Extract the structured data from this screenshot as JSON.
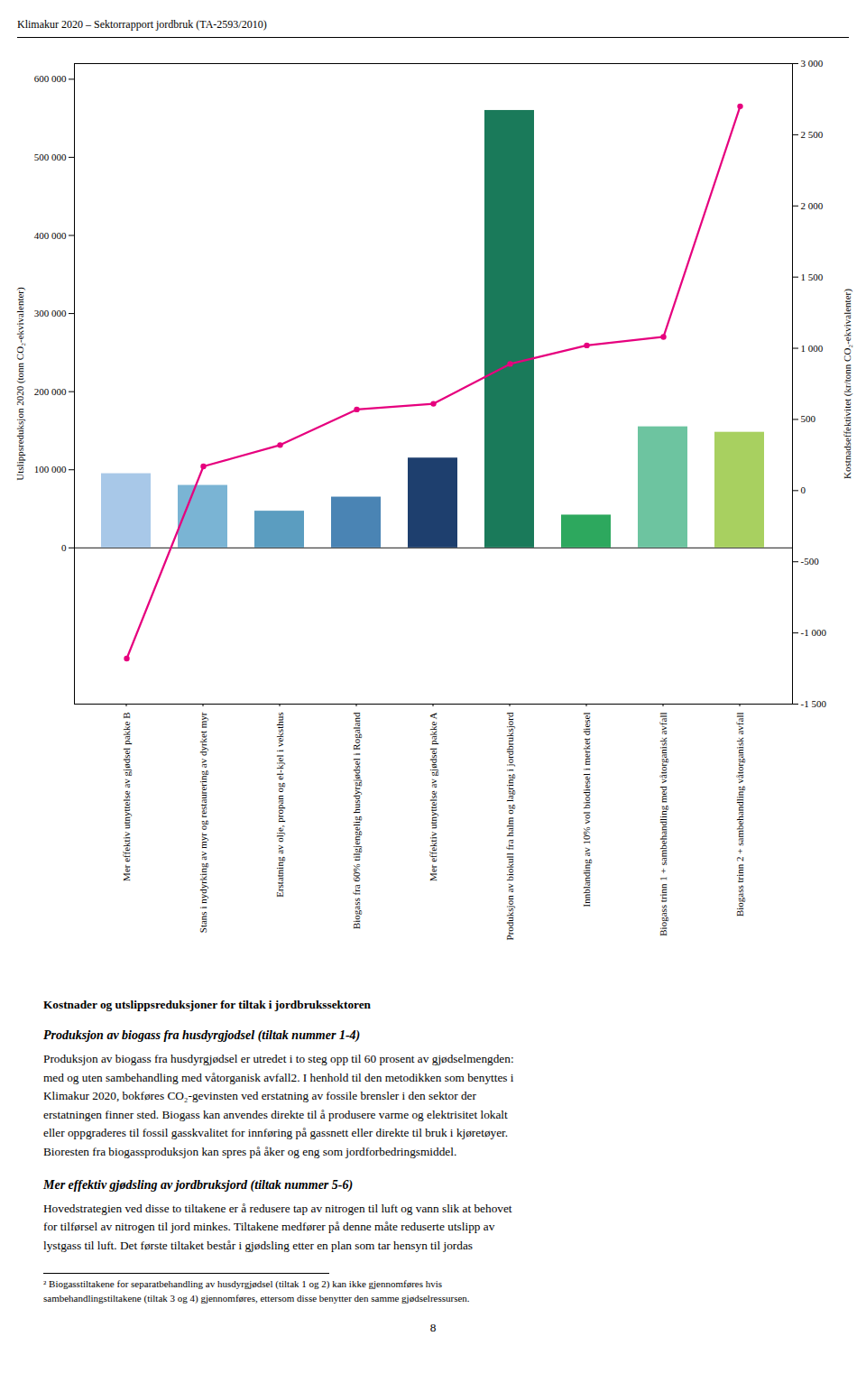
{
  "chart_data": {
    "type": "bar",
    "title": "Kostnader og utslippsreduksjoner for tiltak i jordbrukssektoren",
    "categories": [
      "Mer effektiv utnyttelse av gjødsel pakke B",
      "Stans i nydyrking av myr og restaurering av dyrket myr",
      "Erstatning av olje, propan og el-kjel i veksthus",
      "Biogass fra 60% tilgjengelig husdyrgjødsel i Rogaland",
      "Mer effektiv utnyttelse av gjødsel pakke A",
      "Produksjon av biokull fra halm og lagring i jordbruksjord",
      "Innblanding av 10% vol biodiesel i merket diesel",
      "Biogass trinn 1 + sambehandling med våtorganisk avfall",
      "Biogass trinn 2 + sambehandling våtorganisk avfall"
    ],
    "values": [
      95000,
      80000,
      47000,
      65000,
      115000,
      560000,
      42000,
      155000,
      148000
    ],
    "colors": [
      "#a8c8e8",
      "#7ab4d4",
      "#5b9dc0",
      "#4a84b4",
      "#1e3f6e",
      "#1a7a5a",
      "#2da85e",
      "#6dc4a0",
      "#a8d060"
    ],
    "series": [
      {
        "type": "line",
        "axis": "y2",
        "color": "#e6007e",
        "marker": "circle",
        "values": [
          -1180,
          170,
          320,
          570,
          610,
          890,
          1020,
          1080,
          2700
        ]
      }
    ],
    "ylabel": "Utslippsreduksjon 2020 (tonn CO₂-ekvivalenter)",
    "y2label": "Kostnadseffektivitet (kr/tonn CO₂-ekvivalenter)",
    "ylim": [
      -200000,
      620000
    ],
    "yticks": [
      0,
      {
        "value": 100000,
        "label": "100 000"
      },
      {
        "value": 200000,
        "label": "200 000"
      },
      {
        "value": 300000,
        "label": "300 000"
      },
      {
        "value": 400000,
        "label": "400 000"
      },
      {
        "value": 500000,
        "label": "500 000"
      },
      {
        "value": 600000,
        "label": "600 000"
      }
    ],
    "y2lim": [
      -1500,
      3000
    ],
    "y2ticks": [
      {
        "value": -1500,
        "label": "-1 500"
      },
      {
        "value": -1000,
        "label": "-1 000"
      },
      -500,
      0,
      500,
      {
        "value": 1000,
        "label": "1 000"
      },
      {
        "value": 1500,
        "label": "1 500"
      },
      {
        "value": 2000,
        "label": "2 000"
      },
      {
        "value": 2500,
        "label": "2 500"
      },
      {
        "value": 3000,
        "label": "3 000"
      }
    ],
    "grid": false,
    "annotations": [
      "Klimakur 2020 – Sektorrapport jordbruk (TA-2593/2010)",
      "Produksjon av biogass fra husdyrgjodsel (tiltak nummer 1-4)",
      "Produksjon av biogass fra husdyrgjødsel er utredet i to steg opp til 60 prosent av gjødselmengden:\nmed og uten sambehandling med våtorganisk avfall2. I henhold til den metodikken som benyttes i\nKlimakur 2020, bokføres CO₂-gevinsten ved erstatning av fossile brensler i den sektor der\nerstatningen finner sted. Biogass kan anvendes direkte til å produsere varme og elektrisitet lokalt\neller oppgraderes til fossil gasskvalitet for innføring på gassnett eller direkte til bruk i kjøretøyer.\nBioresten fra biogassproduksjon kan spres på åker og eng som jordforbedringsmiddel.",
      "Mer effektiv gjødsling av jordbruksjord (tiltak nummer 5-6)",
      "Hovedstrategien ved disse to tiltakene er å redusere tap av nitrogen til luft og vann slik at behovet\nfor tilførsel av nitrogen til jord minkes. Tiltakene medfører på denne måte reduserte utslipp av\nlystgass til luft. Det første tiltaket består i gjødsling etter en plan som tar hensyn til jordas",
      "² Biogasstiltakene for separatbehandling av husdyrgjødsel (tiltak 1 og 2) kan ikke gjennomføres hvis\nsambehandlingstiltakene (tiltak 3 og 4) gjennomføres, ettersom disse benytter den samme gjødselressursen.",
      "8"
    ]
  }
}
